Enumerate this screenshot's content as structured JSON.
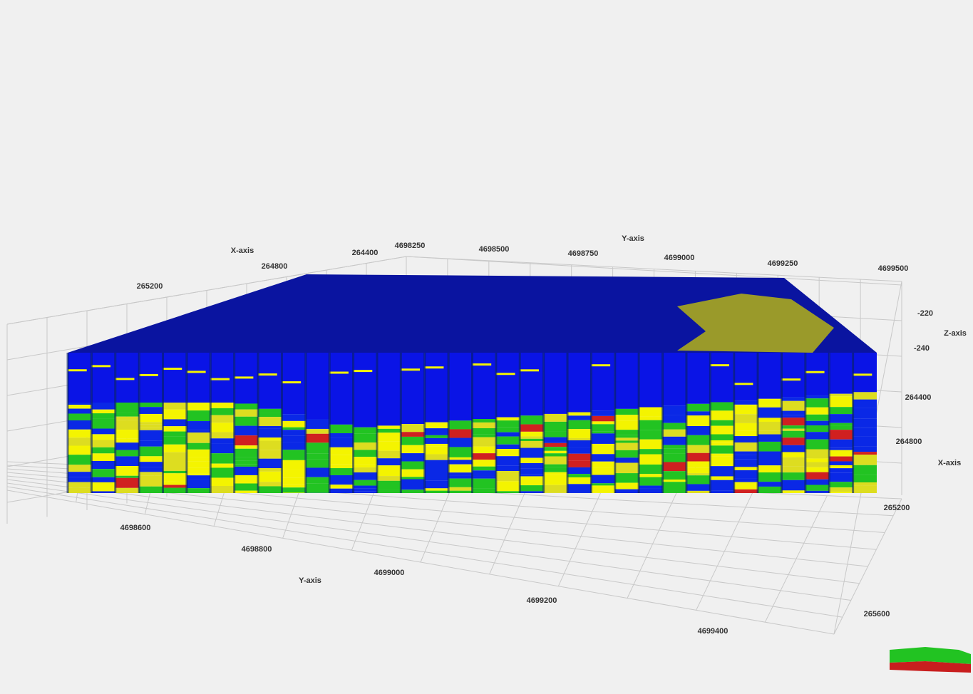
{
  "axes": {
    "top_x": {
      "label": "X-axis",
      "ticks": [
        265200,
        264800,
        264400
      ]
    },
    "top_y": {
      "label": "Y-axis",
      "ticks": [
        4698250,
        4698500,
        4698750,
        4699000,
        4699250,
        4699500
      ]
    },
    "z": {
      "label": "Z-axis",
      "ticks": [
        -220,
        -240
      ]
    },
    "right_x": {
      "label": "X-axis",
      "ticks": [
        264400,
        264800,
        265200,
        265600
      ]
    },
    "bottom_y": {
      "label": "Y-axis",
      "ticks": [
        4698600,
        4698800,
        4699000,
        4699200,
        4699400
      ]
    }
  }
}
